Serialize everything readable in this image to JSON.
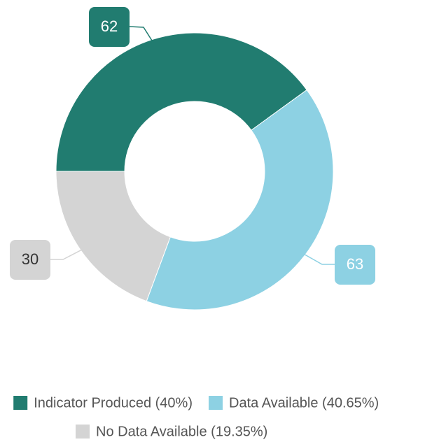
{
  "chart_data": {
    "type": "donut",
    "categories": [
      "Indicator Produced (40%)",
      "Data Available (40.65%)",
      "No Data Available (19.35%)"
    ],
    "series": [
      {
        "name": "Slices",
        "colors": [
          "#217c70",
          "#8dd1e3",
          "#d4d4d4"
        ],
        "values": [
          62,
          63,
          30
        ]
      }
    ],
    "legend": "bottom"
  }
}
